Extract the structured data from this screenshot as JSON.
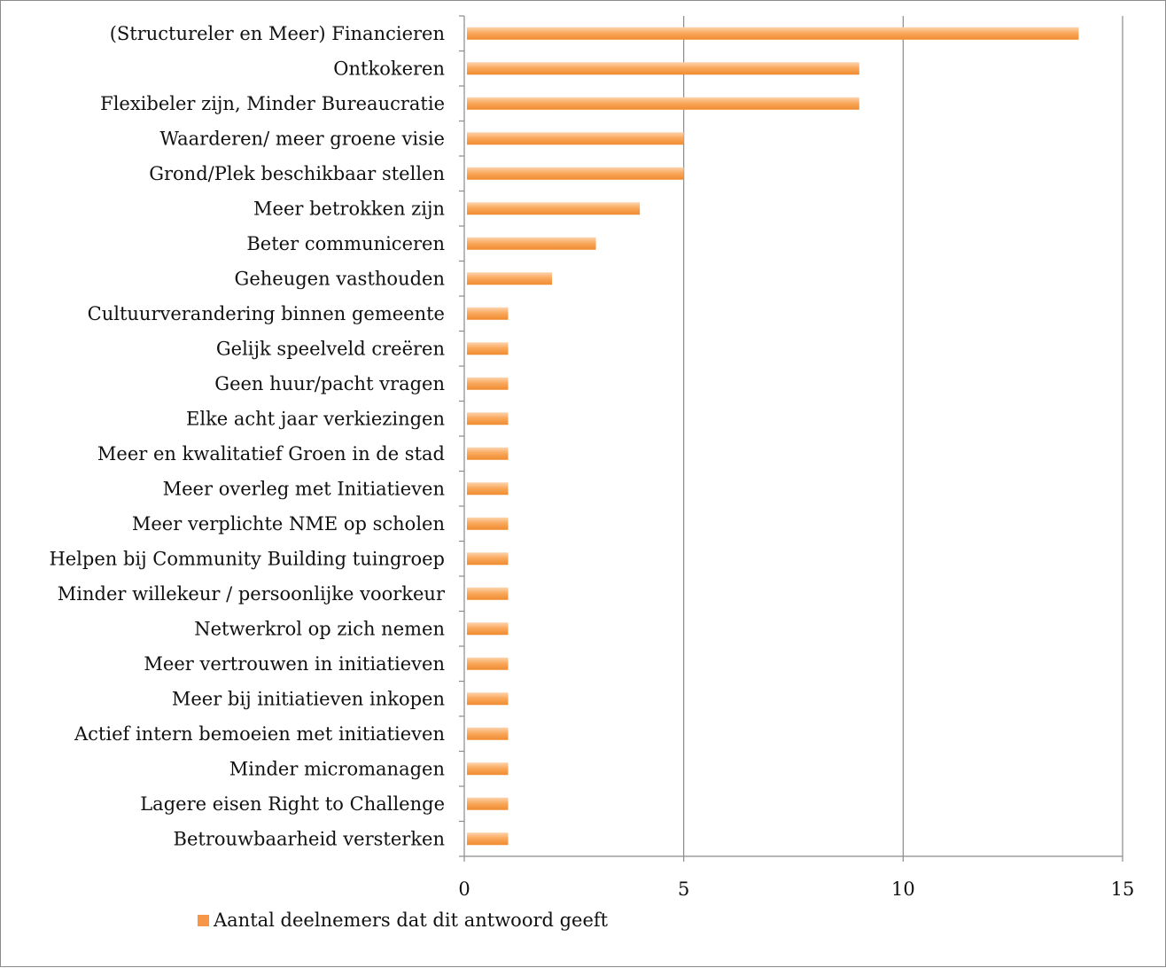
{
  "chart_data": {
    "type": "bar",
    "orientation": "horizontal",
    "categories": [
      "(Structureler en Meer) Financieren",
      "Ontkokeren",
      "Flexibeler zijn, Minder Bureaucratie",
      "Waarderen/ meer groene visie",
      "Grond/Plek beschikbaar stellen",
      "Meer betrokken zijn",
      "Beter communiceren",
      "Geheugen vasthouden",
      "Cultuurverandering binnen gemeente",
      "Gelijk speelveld creëren",
      "Geen huur/pacht vragen",
      "Elke acht jaar verkiezingen",
      "Meer en kwalitatief Groen in de stad",
      "Meer overleg met Initiatieven",
      "Meer verplichte NME op scholen",
      "Helpen bij Community Building tuingroep",
      "Minder willekeur / persoonlijke voorkeur",
      "Netwerkrol op zich nemen",
      "Meer vertrouwen in initiatieven",
      "Meer bij initiatieven inkopen",
      "Actief intern bemoeien met initiatieven",
      "Minder micromanagen",
      "Lagere eisen Right to Challenge",
      "Betrouwbaarheid versterken"
    ],
    "series": [
      {
        "name": "Aantal deelnemers dat dit antwoord geeft",
        "values": [
          14,
          9,
          9,
          5,
          5,
          4,
          3,
          2,
          1,
          1,
          1,
          1,
          1,
          1,
          1,
          1,
          1,
          1,
          1,
          1,
          1,
          1,
          1,
          1
        ],
        "color": "#f79646"
      }
    ],
    "xlim": [
      0,
      15
    ],
    "xticks": [
      "0",
      "5",
      "10",
      "15"
    ],
    "xtick_values": [
      0,
      5,
      10,
      15
    ],
    "grid": true,
    "legend": "bottom-left",
    "title": "",
    "xlabel": "",
    "ylabel": ""
  }
}
